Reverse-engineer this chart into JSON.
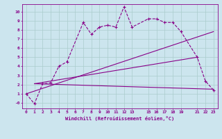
{
  "xlabel": "Windchill (Refroidissement éolien,°C)",
  "bg_color": "#cce5ee",
  "line_color": "#880088",
  "grid_color": "#aacccc",
  "xticks": [
    0,
    1,
    2,
    3,
    4,
    5,
    6,
    7,
    8,
    9,
    10,
    11,
    12,
    13,
    15,
    16,
    17,
    18,
    19,
    21,
    22,
    23
  ],
  "yticks": [
    0,
    1,
    2,
    3,
    4,
    5,
    6,
    7,
    8,
    9,
    10
  ],
  "ytick_labels": [
    "-0",
    "1",
    "2",
    "3",
    "4",
    "5",
    "6",
    "7",
    "8",
    "9",
    "10"
  ],
  "ylim": [
    -0.6,
    10.8
  ],
  "xlim": [
    -0.5,
    23.5
  ],
  "series": {
    "measured": {
      "x": [
        0,
        1,
        2,
        3,
        4,
        5,
        7,
        8,
        9,
        10,
        11,
        12,
        13,
        15,
        16,
        17,
        18,
        19,
        21,
        22,
        23
      ],
      "y": [
        1.0,
        -0.1,
        2.1,
        2.2,
        4.0,
        4.5,
        8.8,
        7.5,
        8.3,
        8.5,
        8.3,
        10.5,
        8.3,
        9.2,
        9.2,
        8.8,
        8.8,
        7.8,
        5.0,
        2.4,
        1.4
      ]
    },
    "line1": {
      "x": [
        0,
        23
      ],
      "y": [
        1.0,
        7.8
      ]
    },
    "line2": {
      "x": [
        1,
        21
      ],
      "y": [
        2.1,
        5.0
      ]
    },
    "line3": {
      "x": [
        1,
        23
      ],
      "y": [
        2.1,
        1.5
      ]
    }
  }
}
